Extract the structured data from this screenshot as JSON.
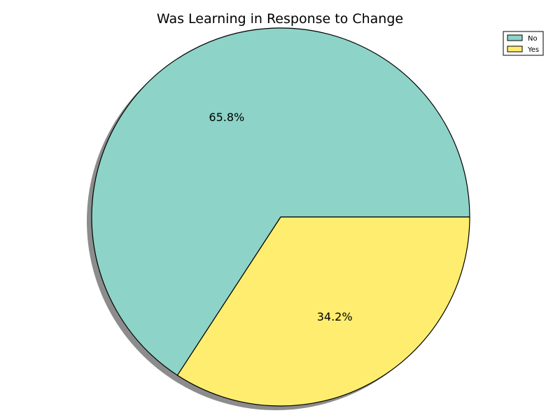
{
  "chart_data": {
    "type": "pie",
    "title": "Was Learning in Response to Change",
    "categories": [
      "No",
      "Yes"
    ],
    "values": [
      65.8,
      34.2
    ],
    "value_labels": [
      "65.8%",
      "34.2%"
    ],
    "colors": [
      "#8dd3c7",
      "#ffed6f"
    ],
    "shadow": true,
    "legend": {
      "placement": "top-right",
      "entries": [
        "No",
        "Yes"
      ]
    }
  }
}
